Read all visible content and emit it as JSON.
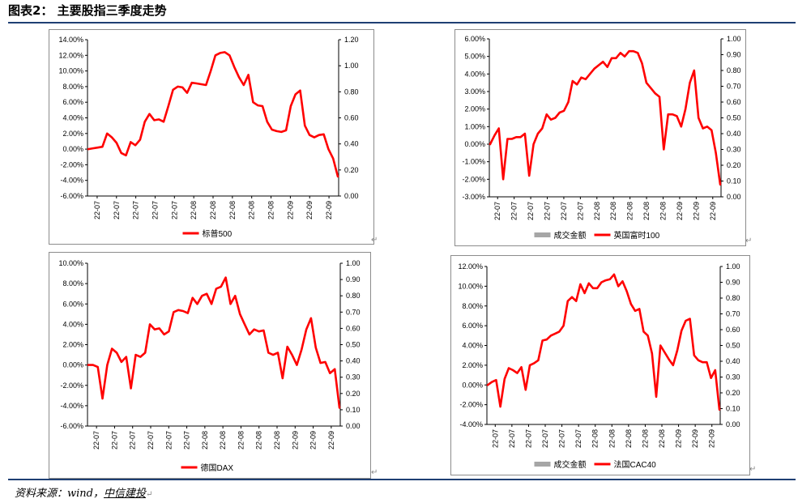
{
  "title": "图表2：  主要股指三季度走势",
  "source": {
    "prefix": "资料来源：wind，",
    "org": "中信建投"
  },
  "return_mark": "↵",
  "chart_data": [
    {
      "type": "line",
      "y_left": {
        "ticks": [
          "14.00%",
          "12.00%",
          "10.00%",
          "8.00%",
          "6.00%",
          "4.00%",
          "2.00%",
          "0.00%",
          "-2.00%",
          "-4.00%",
          "-6.00%"
        ],
        "min": -6,
        "max": 14
      },
      "y_right": {
        "ticks": [
          "1.20",
          "1.00",
          "0.80",
          "0.60",
          "0.40",
          "0.20",
          "0.00"
        ]
      },
      "x_ticks": [
        "22-07",
        "22-07",
        "22-07",
        "22-07",
        "22-07",
        "22-08",
        "22-08",
        "22-08",
        "22-08",
        "22-08",
        "22-09",
        "22-09",
        "22-09"
      ],
      "legend": [
        {
          "label": "标普500",
          "color": "#ff0000",
          "kind": "line"
        }
      ],
      "series": [
        {
          "color": "#ff0000",
          "values": [
            0.0,
            0.1,
            0.2,
            0.3,
            2.0,
            1.5,
            0.8,
            -0.5,
            -0.8,
            0.9,
            0.5,
            1.2,
            3.5,
            4.5,
            3.7,
            3.8,
            3.5,
            5.5,
            7.6,
            8.0,
            7.9,
            7.2,
            8.5,
            8.4,
            8.3,
            8.2,
            10.0,
            12.0,
            12.3,
            12.4,
            12.0,
            10.5,
            9.2,
            8.2,
            9.5,
            6.0,
            5.6,
            5.5,
            3.5,
            2.5,
            2.3,
            2.2,
            2.4,
            5.5,
            7.0,
            7.5,
            3.0,
            1.8,
            1.5,
            1.8,
            1.9,
            0.0,
            -1.2,
            -3.5
          ]
        }
      ]
    },
    {
      "type": "line",
      "y_left": {
        "ticks": [
          "6.00%",
          "5.00%",
          "4.00%",
          "3.00%",
          "2.00%",
          "1.00%",
          "0.00%",
          "-1.00%",
          "-2.00%",
          "-3.00%"
        ],
        "min": -3,
        "max": 6
      },
      "y_right": {
        "ticks": [
          "1.00",
          "0.90",
          "0.80",
          "0.70",
          "0.60",
          "0.50",
          "0.40",
          "0.30",
          "0.20",
          "0.10",
          "0.00"
        ]
      },
      "x_ticks": [
        "22-07",
        "22-07",
        "22-07",
        "22-07",
        "22-07",
        "22-07",
        "22-08",
        "22-08",
        "22-08",
        "22-08",
        "22-08",
        "22-09",
        "22-09",
        "22-09"
      ],
      "legend": [
        {
          "label": "成交金额",
          "color": "#a6a6a6",
          "kind": "bar"
        },
        {
          "label": "英国富时100",
          "color": "#ff0000",
          "kind": "line"
        }
      ],
      "series": [
        {
          "color": "#ff0000",
          "values": [
            0.0,
            0.5,
            0.9,
            -2.0,
            0.3,
            0.3,
            0.4,
            0.4,
            0.6,
            -1.8,
            0.0,
            0.6,
            0.9,
            1.7,
            1.4,
            1.5,
            1.8,
            1.9,
            2.4,
            3.6,
            3.4,
            3.8,
            3.7,
            4.0,
            4.3,
            4.5,
            4.7,
            4.4,
            4.9,
            4.9,
            5.2,
            5.0,
            5.3,
            5.3,
            5.2,
            4.6,
            3.5,
            3.2,
            2.9,
            2.7,
            -0.3,
            1.7,
            1.7,
            1.6,
            1.0,
            2.0,
            3.5,
            4.2,
            1.5,
            0.9,
            1.0,
            0.8,
            -0.5,
            -2.3
          ]
        }
      ]
    },
    {
      "type": "line",
      "y_left": {
        "ticks": [
          "10.00%",
          "8.00%",
          "6.00%",
          "4.00%",
          "2.00%",
          "0.00%",
          "-2.00%",
          "-4.00%",
          "-6.00%"
        ],
        "min": -6,
        "max": 10
      },
      "y_right": {
        "ticks": [
          "1.00",
          "0.90",
          "0.80",
          "0.70",
          "0.60",
          "0.50",
          "0.40",
          "0.30",
          "0.20",
          "0.10",
          "0.00"
        ]
      },
      "x_ticks": [
        "22-07",
        "22-07",
        "22-07",
        "22-07",
        "22-07",
        "22-07",
        "22-08",
        "22-08",
        "22-08",
        "22-08",
        "22-08",
        "22-09",
        "22-09",
        "22-09"
      ],
      "legend": [
        {
          "label": "德国DAX",
          "color": "#ff0000",
          "kind": "line"
        }
      ],
      "series": [
        {
          "color": "#ff0000",
          "values": [
            0.0,
            0.0,
            -0.2,
            -3.3,
            0.0,
            1.6,
            1.2,
            0.3,
            0.8,
            -2.3,
            1.0,
            0.8,
            1.2,
            4.0,
            3.5,
            3.6,
            3.0,
            3.3,
            5.2,
            5.4,
            5.3,
            5.1,
            6.6,
            6.0,
            6.8,
            7.0,
            6.0,
            7.5,
            7.7,
            8.6,
            6.0,
            6.8,
            5.0,
            4.0,
            3.0,
            3.5,
            3.3,
            3.4,
            1.2,
            1.0,
            1.2,
            -1.3,
            1.8,
            1.0,
            0.0,
            1.5,
            3.5,
            4.6,
            1.7,
            0.2,
            0.3,
            -0.8,
            -0.4,
            -4.2
          ]
        }
      ]
    },
    {
      "type": "line",
      "y_left": {
        "ticks": [
          "12.00%",
          "10.00%",
          "8.00%",
          "6.00%",
          "4.00%",
          "2.00%",
          "0.00%",
          "-2.00%",
          "-4.00%"
        ],
        "min": -4,
        "max": 12
      },
      "y_right": {
        "ticks": [
          "1.00",
          "0.90",
          "0.80",
          "0.70",
          "0.60",
          "0.50",
          "0.40",
          "0.30",
          "0.20",
          "0.10",
          "0.00"
        ]
      },
      "x_ticks": [
        "22-07",
        "22-07",
        "22-07",
        "22-07",
        "22-07",
        "22-07",
        "22-08",
        "22-08",
        "22-08",
        "22-08",
        "22-08",
        "22-09",
        "22-09",
        "22-09"
      ],
      "legend": [
        {
          "label": "成交金额",
          "color": "#a6a6a6",
          "kind": "bar"
        },
        {
          "label": "法国CAC40",
          "color": "#ff0000",
          "kind": "line"
        }
      ],
      "series": [
        {
          "color": "#ff0000",
          "values": [
            0.0,
            0.3,
            0.5,
            -2.2,
            0.6,
            1.7,
            1.5,
            1.2,
            1.8,
            -0.5,
            2.0,
            2.2,
            2.5,
            4.5,
            4.6,
            5.0,
            5.2,
            5.4,
            6.0,
            8.5,
            8.9,
            8.5,
            10.2,
            9.3,
            10.3,
            9.8,
            9.8,
            10.4,
            10.6,
            10.7,
            11.2,
            10.0,
            10.5,
            9.5,
            8.2,
            7.5,
            7.7,
            5.4,
            5.0,
            3.2,
            -1.2,
            4.0,
            3.3,
            2.6,
            2.0,
            3.5,
            5.5,
            6.5,
            6.7,
            3.0,
            2.5,
            2.3,
            2.3,
            0.7,
            1.5,
            -2.5
          ]
        }
      ]
    }
  ]
}
